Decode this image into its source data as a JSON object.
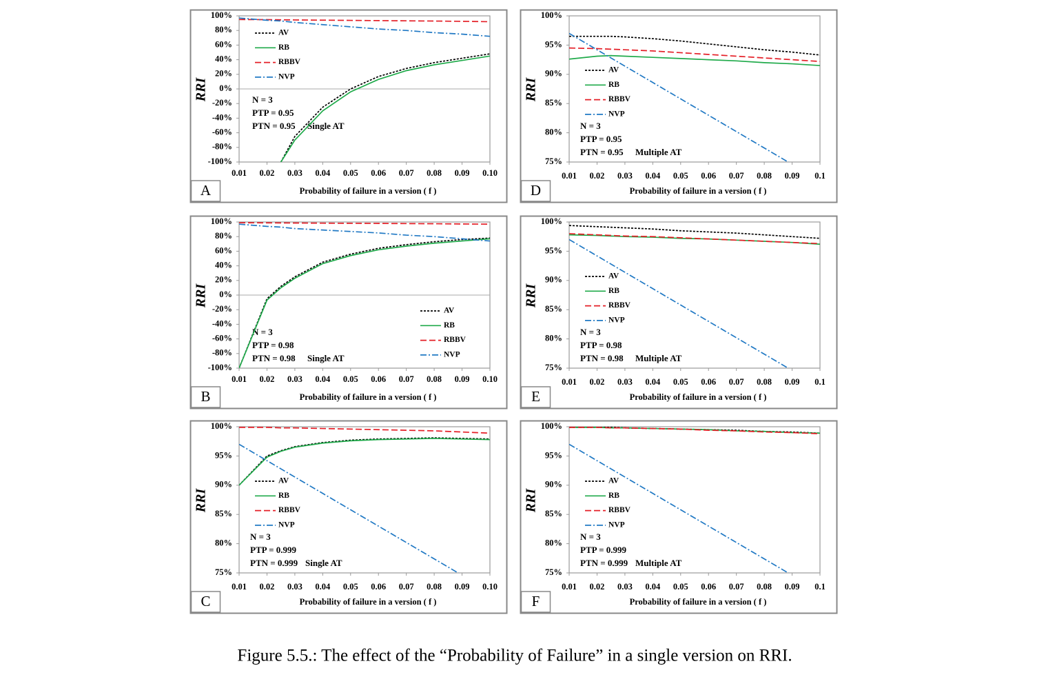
{
  "figure_caption": "Figure 5.5.: The effect of the “Probability of Failure” in a single version on RRI.",
  "chart_data": [
    {
      "type": "line",
      "panel": "A",
      "xlabel": "Probability of failure in a version ( f )",
      "ylabel": "RRI",
      "legend": "upper left",
      "annotations": [
        "N = 3",
        "PTP = 0.95",
        "PTN = 0.95",
        "Single AT"
      ],
      "x": [
        0.01,
        0.02,
        0.025,
        0.03,
        0.04,
        0.05,
        0.06,
        0.07,
        0.08,
        0.09,
        0.1
      ],
      "xlim": [
        0.01,
        0.1
      ],
      "xticks": [
        0.01,
        0.02,
        0.03,
        0.04,
        0.05,
        0.06,
        0.07,
        0.08,
        0.09,
        {
          "value": 0.1,
          "label": "0.10"
        }
      ],
      "ylim": [
        -100,
        100
      ],
      "yticks": [
        {
          "value": 100,
          "label": "100%"
        },
        {
          "value": 80,
          "label": "80%"
        },
        {
          "value": 60,
          "label": "60%"
        },
        {
          "value": 40,
          "label": "40%"
        },
        {
          "value": 20,
          "label": "20%"
        },
        {
          "value": 0,
          "label": "0%"
        },
        {
          "value": -20,
          "label": "-20%"
        },
        {
          "value": -40,
          "label": "-40%"
        },
        {
          "value": -60,
          "label": "-60%"
        },
        {
          "value": -80,
          "label": "-80%"
        },
        {
          "value": -100,
          "label": "-100%"
        }
      ],
      "series": [
        {
          "name": "AV",
          "color": "#000000",
          "line_style": "dotted",
          "values": [
            null,
            null,
            -100,
            -65,
            -25,
            0,
            17,
            28,
            36,
            42,
            48
          ]
        },
        {
          "name": "RB",
          "color": "#1faa4a",
          "line_style": "solid",
          "values": [
            null,
            null,
            -100,
            -70,
            -30,
            -4,
            13,
            25,
            33,
            39,
            45
          ]
        },
        {
          "name": "RBBV",
          "color": "#e41e26",
          "line_style": "dashed",
          "values": [
            95,
            94.8,
            94.6,
            94.4,
            94.1,
            93.8,
            93.5,
            93.2,
            92.9,
            92.5,
            92
          ]
        },
        {
          "name": "NVP",
          "color": "#1f78c4",
          "line_style": "dash-dot",
          "values": [
            97,
            94,
            93,
            91,
            88,
            85,
            82,
            80,
            77,
            75,
            72
          ]
        }
      ]
    },
    {
      "type": "line",
      "panel": "D",
      "xlabel": "Probability of failure in a version ( f )",
      "ylabel": "RRI",
      "legend": "center left",
      "annotations": [
        "N = 3",
        "PTP = 0.95",
        "PTN = 0.95",
        "Multiple AT"
      ],
      "x": [
        0.01,
        0.02,
        0.025,
        0.03,
        0.04,
        0.05,
        0.06,
        0.07,
        0.08,
        0.09,
        0.1
      ],
      "xlim": [
        0.01,
        0.1
      ],
      "xticks": [
        0.01,
        0.02,
        0.03,
        0.04,
        0.05,
        0.06,
        0.07,
        0.08,
        0.09,
        0.1
      ],
      "ylim": [
        75,
        100
      ],
      "yticks": [
        {
          "value": 100,
          "label": "100%"
        },
        {
          "value": 95,
          "label": "95%"
        },
        {
          "value": 90,
          "label": "90%"
        },
        {
          "value": 85,
          "label": "85%"
        },
        {
          "value": 80,
          "label": "80%"
        },
        {
          "value": 75,
          "label": "75%"
        }
      ],
      "series": [
        {
          "name": "AV",
          "color": "#000000",
          "line_style": "dotted",
          "values": [
            96.5,
            96.5,
            96.5,
            96.4,
            96.1,
            95.7,
            95.2,
            94.7,
            94.2,
            93.8,
            93.3
          ]
        },
        {
          "name": "RB",
          "color": "#1faa4a",
          "line_style": "solid",
          "values": [
            92.6,
            93.1,
            93.2,
            93.1,
            92.9,
            92.7,
            92.5,
            92.3,
            92,
            91.8,
            91.5
          ]
        },
        {
          "name": "RBBV",
          "color": "#e41e26",
          "line_style": "dashed",
          "values": [
            94.5,
            94.4,
            94.3,
            94.2,
            94,
            93.7,
            93.4,
            93.1,
            92.8,
            92.5,
            92.2
          ]
        },
        {
          "name": "NVP",
          "color": "#1f78c4",
          "line_style": "dash-dot",
          "values": [
            97,
            94.2,
            92.8,
            91.4,
            88.6,
            85.8,
            83,
            80.2,
            77.4,
            74.6,
            71.8
          ]
        }
      ]
    },
    {
      "type": "line",
      "panel": "B",
      "xlabel": "Probability of failure in a version ( f )",
      "ylabel": "RRI",
      "legend": "lower right",
      "annotations": [
        "N = 3",
        "PTP = 0.98",
        "PTN = 0.98",
        "Single AT"
      ],
      "x": [
        0.01,
        0.02,
        0.025,
        0.03,
        0.04,
        0.05,
        0.06,
        0.07,
        0.08,
        0.09,
        0.1
      ],
      "xlim": [
        0.01,
        0.1
      ],
      "xticks": [
        0.01,
        0.02,
        0.03,
        0.04,
        0.05,
        0.06,
        0.07,
        0.08,
        0.09,
        {
          "value": 0.1,
          "label": "0.10"
        }
      ],
      "ylim": [
        -100,
        100
      ],
      "yticks": [
        {
          "value": 100,
          "label": "100%"
        },
        {
          "value": 80,
          "label": "80%"
        },
        {
          "value": 60,
          "label": "60%"
        },
        {
          "value": 40,
          "label": "40%"
        },
        {
          "value": 20,
          "label": "20%"
        },
        {
          "value": 0,
          "label": "0%"
        },
        {
          "value": -20,
          "label": "-20%"
        },
        {
          "value": -40,
          "label": "-40%"
        },
        {
          "value": -60,
          "label": "-60%"
        },
        {
          "value": -80,
          "label": "-80%"
        },
        {
          "value": -100,
          "label": "-100%"
        }
      ],
      "series": [
        {
          "name": "AV",
          "color": "#000000",
          "line_style": "dotted",
          "values": [
            -100,
            -5,
            12,
            25,
            45,
            56,
            64,
            69,
            73,
            76,
            78
          ]
        },
        {
          "name": "RB",
          "color": "#1faa4a",
          "line_style": "solid",
          "values": [
            -100,
            -7,
            10,
            23,
            43,
            54,
            62,
            67,
            71,
            74,
            77
          ]
        },
        {
          "name": "RBBV",
          "color": "#e41e26",
          "line_style": "dashed",
          "values": [
            99,
            98.8,
            98.7,
            98.6,
            98.4,
            98.2,
            98,
            97.8,
            97.6,
            97.3,
            97
          ]
        },
        {
          "name": "NVP",
          "color": "#1f78c4",
          "line_style": "dash-dot",
          "values": [
            97,
            94,
            93,
            91,
            89,
            87,
            85,
            82,
            80,
            77,
            74
          ]
        }
      ]
    },
    {
      "type": "line",
      "panel": "E",
      "xlabel": "Probability of failure in a version ( f )",
      "ylabel": "RRI",
      "legend": "center left",
      "annotations": [
        "N = 3",
        "PTP = 0.98",
        "PTN = 0.98",
        "Multiple AT"
      ],
      "x": [
        0.01,
        0.02,
        0.025,
        0.03,
        0.04,
        0.05,
        0.06,
        0.07,
        0.08,
        0.09,
        0.1
      ],
      "xlim": [
        0.01,
        0.1
      ],
      "xticks": [
        0.01,
        0.02,
        0.03,
        0.04,
        0.05,
        0.06,
        0.07,
        0.08,
        0.09,
        0.1
      ],
      "ylim": [
        75,
        100
      ],
      "yticks": [
        {
          "value": 100,
          "label": "100%"
        },
        {
          "value": 95,
          "label": "95%"
        },
        {
          "value": 90,
          "label": "90%"
        },
        {
          "value": 85,
          "label": "85%"
        },
        {
          "value": 80,
          "label": "80%"
        },
        {
          "value": 75,
          "label": "75%"
        }
      ],
      "series": [
        {
          "name": "AV",
          "color": "#000000",
          "line_style": "dotted",
          "values": [
            99.4,
            99.2,
            99.1,
            99,
            98.8,
            98.5,
            98.3,
            98.1,
            97.8,
            97.5,
            97.2
          ]
        },
        {
          "name": "RB",
          "color": "#1faa4a",
          "line_style": "solid",
          "values": [
            97.8,
            97.7,
            97.6,
            97.5,
            97.4,
            97.2,
            97.1,
            96.9,
            96.7,
            96.5,
            96.2
          ]
        },
        {
          "name": "RBBV",
          "color": "#e41e26",
          "line_style": "dashed",
          "values": [
            98,
            97.8,
            97.7,
            97.6,
            97.5,
            97.3,
            97.1,
            96.9,
            96.7,
            96.5,
            96.3
          ]
        },
        {
          "name": "NVP",
          "color": "#1f78c4",
          "line_style": "dash-dot",
          "values": [
            97,
            94.2,
            92.8,
            91.4,
            88.6,
            85.8,
            83,
            80.2,
            77.4,
            74.6,
            71.8
          ]
        }
      ]
    },
    {
      "type": "line",
      "panel": "C",
      "xlabel": "Probability of failure in a version ( f )",
      "ylabel": "RRI",
      "legend": "center left",
      "annotations": [
        "N = 3",
        "PTP = 0.999",
        "PTN = 0.999",
        "Single AT"
      ],
      "x": [
        0.01,
        0.02,
        0.025,
        0.03,
        0.04,
        0.05,
        0.06,
        0.07,
        0.08,
        0.09,
        0.1
      ],
      "xlim": [
        0.01,
        0.1
      ],
      "xticks": [
        0.01,
        0.02,
        0.03,
        0.04,
        0.05,
        0.06,
        0.07,
        0.08,
        0.09,
        {
          "value": 0.1,
          "label": "0.10"
        }
      ],
      "ylim": [
        75,
        100
      ],
      "yticks": [
        {
          "value": 100,
          "label": "100%"
        },
        {
          "value": 95,
          "label": "95%"
        },
        {
          "value": 90,
          "label": "90%"
        },
        {
          "value": 85,
          "label": "85%"
        },
        {
          "value": 80,
          "label": "80%"
        },
        {
          "value": 75,
          "label": "75%"
        }
      ],
      "series": [
        {
          "name": "AV",
          "color": "#000000",
          "line_style": "dotted",
          "values": [
            90,
            95,
            95.9,
            96.6,
            97.3,
            97.7,
            97.9,
            98,
            98.1,
            98,
            97.9
          ]
        },
        {
          "name": "RB",
          "color": "#1faa4a",
          "line_style": "solid",
          "values": [
            90,
            94.8,
            95.8,
            96.5,
            97.2,
            97.6,
            97.8,
            97.9,
            98,
            97.9,
            97.8
          ]
        },
        {
          "name": "RBBV",
          "color": "#e41e26",
          "line_style": "dashed",
          "values": [
            99.9,
            99.9,
            99.8,
            99.8,
            99.7,
            99.6,
            99.5,
            99.4,
            99.3,
            99.1,
            98.9
          ]
        },
        {
          "name": "NVP",
          "color": "#1f78c4",
          "line_style": "dash-dot",
          "values": [
            97,
            94.2,
            92.8,
            91.4,
            88.6,
            85.8,
            83,
            80.2,
            77.4,
            74.6,
            71.8
          ]
        }
      ]
    },
    {
      "type": "line",
      "panel": "F",
      "xlabel": "Probability of failure in a version ( f )",
      "ylabel": "RRI",
      "legend": "center left",
      "annotations": [
        "N = 3",
        "PTP = 0.999",
        "PTN = 0.999",
        "Multiple AT"
      ],
      "x": [
        0.01,
        0.02,
        0.025,
        0.03,
        0.04,
        0.05,
        0.06,
        0.07,
        0.08,
        0.09,
        0.1
      ],
      "xlim": [
        0.01,
        0.1
      ],
      "xticks": [
        0.01,
        0.02,
        0.03,
        0.04,
        0.05,
        0.06,
        0.07,
        0.08,
        0.09,
        0.1
      ],
      "ylim": [
        75,
        100
      ],
      "yticks": [
        {
          "value": 100,
          "label": "100%"
        },
        {
          "value": 95,
          "label": "95%"
        },
        {
          "value": 90,
          "label": "90%"
        },
        {
          "value": 85,
          "label": "85%"
        },
        {
          "value": 80,
          "label": "80%"
        },
        {
          "value": 75,
          "label": "75%"
        }
      ],
      "series": [
        {
          "name": "AV",
          "color": "#000000",
          "line_style": "dotted",
          "values": [
            99.9,
            99.9,
            99.9,
            99.8,
            99.7,
            99.6,
            99.5,
            99.4,
            99.2,
            99.1,
            98.9
          ]
        },
        {
          "name": "RB",
          "color": "#1faa4a",
          "line_style": "solid",
          "values": [
            99.9,
            99.9,
            99.8,
            99.8,
            99.7,
            99.6,
            99.5,
            99.3,
            99.2,
            99,
            98.9
          ]
        },
        {
          "name": "RBBV",
          "color": "#e41e26",
          "line_style": "dashed",
          "values": [
            99.9,
            99.9,
            99.8,
            99.8,
            99.7,
            99.6,
            99.4,
            99.3,
            99.1,
            99,
            98.8
          ]
        },
        {
          "name": "NVP",
          "color": "#1f78c4",
          "line_style": "dash-dot",
          "values": [
            97,
            94.2,
            92.8,
            91.4,
            88.6,
            85.8,
            83,
            80.2,
            77.4,
            74.6,
            71.8
          ]
        }
      ]
    }
  ]
}
